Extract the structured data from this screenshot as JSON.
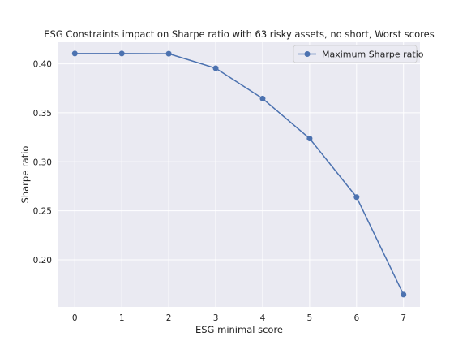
{
  "chart_data": {
    "type": "line",
    "title": "ESG Constraints impact on Sharpe ratio with 63 risky assets, no short, Worst scores",
    "xlabel": "ESG minimal score",
    "ylabel": "Sharpe ratio",
    "x": [
      0,
      1,
      2,
      3,
      4,
      5,
      6,
      7
    ],
    "xticks": [
      "0",
      "1",
      "2",
      "3",
      "4",
      "5",
      "6",
      "7"
    ],
    "yticks": [
      "0.20",
      "0.25",
      "0.30",
      "0.35",
      "0.40"
    ],
    "xlim": [
      -0.35,
      7.35
    ],
    "ylim": [
      0.152,
      0.422
    ],
    "grid": true,
    "legend_position": "top-right",
    "series": [
      {
        "name": "Maximum Sharpe ratio",
        "color": "#4c72b0",
        "marker": "circle",
        "values": [
          0.4105,
          0.4105,
          0.4103,
          0.3955,
          0.3645,
          0.3238,
          0.264,
          0.1645
        ]
      }
    ]
  },
  "colors": {
    "plot_background": "#eaeaf2",
    "grid": "#ffffff",
    "line": "#4c72b0"
  }
}
